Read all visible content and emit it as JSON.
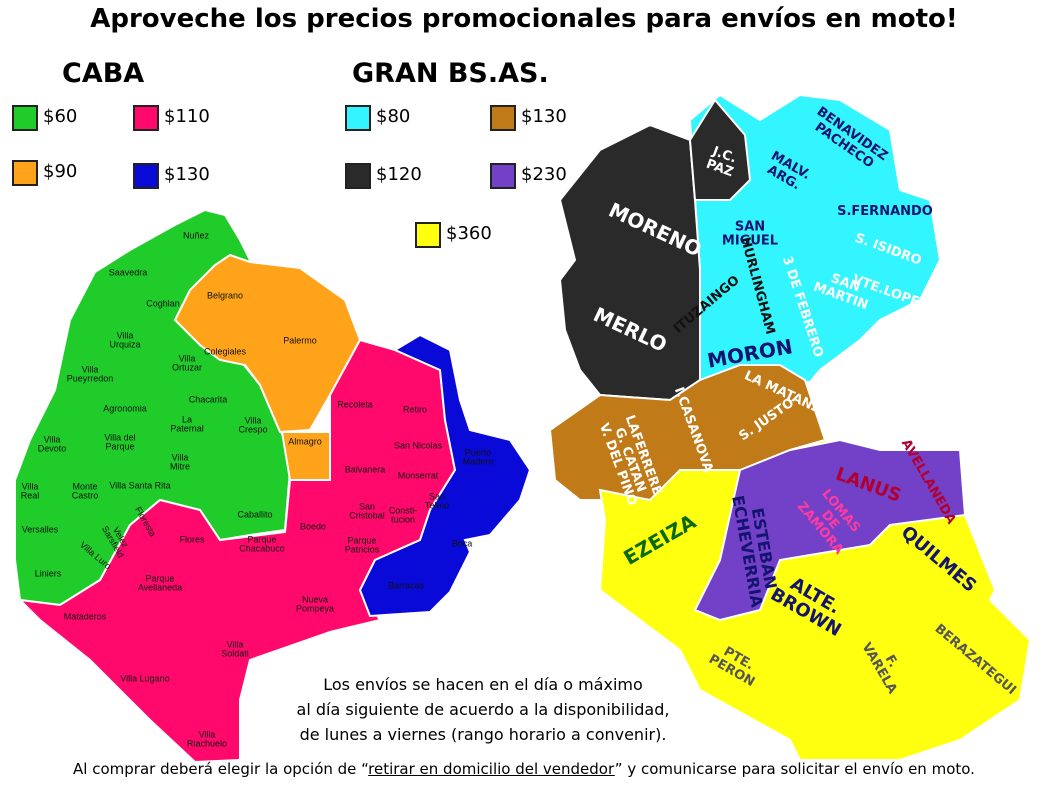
{
  "title": "Aproveche los precios promocionales para envíos en moto!",
  "legend": {
    "caba": {
      "title": "CABA",
      "items": [
        {
          "label": "$60",
          "color": "#1fcc2a"
        },
        {
          "label": "$110",
          "color": "#ff0a6c"
        },
        {
          "label": "$90",
          "color": "#ffa31a"
        },
        {
          "label": "$130",
          "color": "#0a0ad8"
        }
      ]
    },
    "gba": {
      "title": "GRAN BS.AS.",
      "items": [
        {
          "label": "$80",
          "color": "#33f5ff"
        },
        {
          "label": "$130",
          "color": "#c07a18"
        },
        {
          "label": "$120",
          "color": "#2a2a2a"
        },
        {
          "label": "$230",
          "color": "#7340c8"
        },
        {
          "label": "$360",
          "color": "#ffff10"
        }
      ]
    }
  },
  "caba_neighborhoods": [
    "Nuñez",
    "Saavedra",
    "Coghlan",
    "Belgrano",
    "Villa\nUrquiza",
    "Palermo",
    "Colegiales",
    "Villa\nOrtuzar",
    "Villa\nPueyrredon",
    "Chacarita",
    "Agronomia",
    "La\nPaternal",
    "Villa\nCrespo",
    "Recoleta",
    "Retiro",
    "Villa\nDevoto",
    "Villa del\nParque",
    "Villa\nMitre",
    "Almagro",
    "San Nicolas",
    "Puerto\nMadero",
    "Balvanera",
    "Monserrat",
    "Villa\nReal",
    "Monte\nCastro",
    "Villa Santa Rita",
    "Caballito",
    "San\nTelmo",
    "Versalles",
    "Floresta",
    "Velez\nSarsfield",
    "Flores",
    "Boedo",
    "San\nCristobal",
    "Consti-\ntucion",
    "Villa Luro",
    "Parque\nChacabuco",
    "Parque\nPatricios",
    "Boca",
    "Liniers",
    "Barracas",
    "Parque\nAvellaneda",
    "Nueva\nPompeya",
    "Mataderos",
    "Villa\nSoldati",
    "Villa Lugano",
    "Villa\nRiachuelo"
  ],
  "gba_districts": [
    "J.C.\nPAZ",
    "BENAVIDEZ\nPACHECO",
    "MALV.\nARG.",
    "S.FERNANDO",
    "MORENO",
    "SAN\nMIGUEL",
    "S. ISIDRO",
    "HURLINGHAM",
    "SAN\nMARTIN",
    "VTE.LOPEZ",
    "ITUZAINGO",
    "3 DE FEBRERO",
    "MERLO",
    "MORON",
    "LA MATANZA",
    "S. JUSTO",
    "LAFERRERE\nG. CATAN\nV. DEL PINO",
    "I.CASANOVA",
    "LANUS",
    "AVELLANEDA",
    "LOMAS\nDE\nZAMORA",
    "ESTEBAN\nECHEVERRIA",
    "EZEIZA",
    "QUILMES",
    "ALTE.\nBROWN",
    "PTE.\nPERON",
    "F.\nVARELA",
    "BERAZATEGUI"
  ],
  "note": [
    "Los envíos se hacen en el día o máximo",
    "al día siguiente de acuerdo a la disponibilidad,",
    "de lunes a viernes (rango horario a convenir)."
  ],
  "footer": {
    "before": "Al comprar deberá elegir la opción de “",
    "link": "retirar en domicilio del vendedor",
    "after": "” y comunicarse para solicitar el envío en moto."
  }
}
